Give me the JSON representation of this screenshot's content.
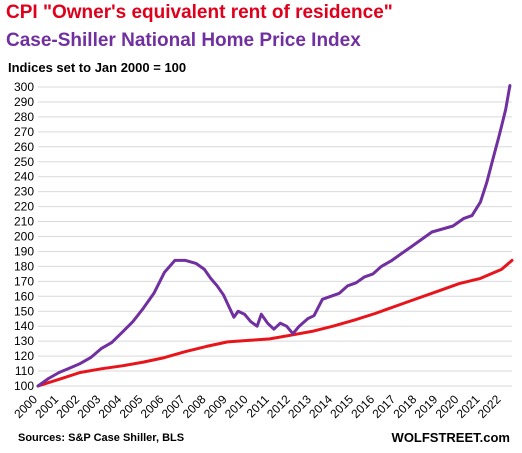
{
  "header": {
    "title_line1": "CPI \"Owner's equivalent rent of residence\"",
    "title_line2": "Case-Shiller National Home Price Index",
    "subtitle": "Indices set to Jan 2000 = 100"
  },
  "footer": {
    "source": "Sources: S&P Case Shiller, BLS",
    "brand": "WOLFSTREET.com"
  },
  "chart_data": {
    "type": "line",
    "title": "CPI \"Owner's equivalent rent of residence\" / Case-Shiller National Home Price Index",
    "subtitle": "Indices set to Jan 2000 = 100",
    "ylim": [
      100,
      300
    ],
    "xlim": [
      2000,
      2022.5
    ],
    "y_ticks": [
      100,
      110,
      120,
      130,
      140,
      150,
      160,
      170,
      180,
      190,
      200,
      210,
      220,
      230,
      240,
      250,
      260,
      270,
      280,
      290,
      300
    ],
    "x_ticks": [
      "2000",
      "2001",
      "2002",
      "2003",
      "2004",
      "2005",
      "2006",
      "2007",
      "2008",
      "2009",
      "2010",
      "2011",
      "2012",
      "2013",
      "2014",
      "2015",
      "2016",
      "2017",
      "2018",
      "2019",
      "2020",
      "2021",
      "2022"
    ],
    "grid": "horizontal",
    "series": [
      {
        "name": "CPI \"Owner's equivalent rent of residence\"",
        "color": "#e8141c",
        "x": [
          2000,
          2001,
          2002,
          2003,
          2004,
          2005,
          2006,
          2007,
          2008,
          2009,
          2010,
          2011,
          2012,
          2013,
          2014,
          2015,
          2016,
          2017,
          2018,
          2019,
          2020,
          2021,
          2022,
          2022.5
        ],
        "y": [
          100,
          104.5,
          109,
          111.5,
          113.5,
          116,
          119,
          123,
          126.5,
          129.5,
          130.5,
          131.5,
          134,
          136.5,
          140,
          144,
          148.5,
          153.5,
          158.5,
          163.5,
          168.5,
          172,
          178,
          184
        ]
      },
      {
        "name": "Case-Shiller National Home Price Index",
        "color": "#7030a0",
        "x": [
          2000,
          2000.5,
          2001,
          2001.5,
          2002,
          2002.5,
          2003,
          2003.5,
          2004,
          2004.5,
          2005,
          2005.5,
          2006,
          2006.25,
          2006.5,
          2007,
          2007.5,
          2007.9,
          2008.2,
          2008.5,
          2008.8,
          2009.1,
          2009.3,
          2009.5,
          2009.8,
          2010.1,
          2010.4,
          2010.6,
          2010.9,
          2011.2,
          2011.5,
          2011.8,
          2012.1,
          2012.4,
          2012.8,
          2013.1,
          2013.5,
          2013.9,
          2014.3,
          2014.7,
          2015.1,
          2015.5,
          2015.9,
          2016.3,
          2016.8,
          2017.2,
          2017.7,
          2018.2,
          2018.7,
          2019.2,
          2019.7,
          2020.2,
          2020.6,
          2021.0,
          2021.3,
          2021.6,
          2021.9,
          2022.2,
          2022.4
        ],
        "y": [
          100,
          105,
          109,
          112,
          115,
          119,
          125,
          129,
          136,
          143,
          152,
          162,
          176,
          180,
          184,
          184,
          182,
          178,
          172,
          167,
          161,
          152,
          146,
          150,
          148,
          143,
          140,
          148,
          142,
          138,
          142,
          140,
          135,
          140,
          145,
          147,
          158,
          160,
          162,
          167,
          169,
          173,
          175,
          180,
          184,
          188,
          193,
          198,
          203,
          205,
          207,
          212,
          214,
          223,
          236,
          252,
          268,
          285,
          301
        ]
      }
    ]
  }
}
